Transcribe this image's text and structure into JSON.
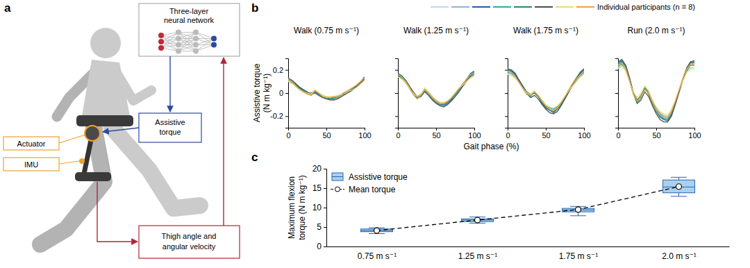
{
  "panel_labels": [
    "a",
    "b",
    "c"
  ],
  "diagram": {
    "network_label": [
      "Three-layer",
      "neural network"
    ],
    "torque_label": [
      "Assistive",
      "torque"
    ],
    "actuator_label": "Actuator",
    "imu_label": "IMU",
    "sensor_label": [
      "Thigh angle and",
      "angular velocity"
    ]
  },
  "panel_b": {
    "legend_label": "Individual participants (n = 8)",
    "x_label": "Gait phase (%)"
  },
  "chart_data": [
    {
      "type": "line",
      "title": "Walk (0.75 m s⁻¹)",
      "y_label": [
        "Assistive torque",
        "(N m kg⁻¹)"
      ],
      "x": [
        0,
        5,
        10,
        15,
        20,
        25,
        30,
        35,
        40,
        45,
        50,
        55,
        60,
        65,
        70,
        75,
        80,
        85,
        90,
        95,
        100
      ],
      "xlim": [
        0,
        100
      ],
      "xticks": [
        0,
        50,
        100
      ],
      "ylim": [
        -0.3,
        0.3
      ],
      "yticks": [
        -0.2,
        0,
        0.2
      ],
      "series": [
        {
          "color": "#bcd9ec",
          "values": [
            0.11,
            0.09,
            0.06,
            0.04,
            0.02,
            0.0,
            -0.01,
            0.01,
            -0.01,
            -0.03,
            -0.04,
            -0.04,
            -0.04,
            -0.03,
            -0.02,
            0.0,
            0.02,
            0.04,
            0.05,
            0.08,
            0.12
          ]
        },
        {
          "color": "#8db9dd",
          "values": [
            0.12,
            0.1,
            0.07,
            0.04,
            0.02,
            0.0,
            -0.01,
            0.01,
            -0.01,
            -0.03,
            -0.04,
            -0.04,
            -0.04,
            -0.03,
            -0.02,
            0.0,
            0.02,
            0.04,
            0.06,
            0.09,
            0.13
          ]
        },
        {
          "color": "#2a64ad",
          "values": [
            0.13,
            0.11,
            0.08,
            0.05,
            0.02,
            0.0,
            -0.02,
            0.01,
            -0.01,
            -0.03,
            -0.05,
            -0.05,
            -0.04,
            -0.03,
            -0.01,
            0.01,
            0.02,
            0.04,
            0.07,
            0.1,
            0.14
          ]
        },
        {
          "color": "#35b39a",
          "values": [
            0.12,
            0.09,
            0.06,
            0.03,
            0.01,
            -0.01,
            -0.01,
            0.02,
            0.0,
            -0.02,
            -0.03,
            -0.04,
            -0.04,
            -0.03,
            -0.02,
            0.0,
            0.01,
            0.03,
            0.06,
            0.09,
            0.12
          ]
        },
        {
          "color": "#2f8f73",
          "values": [
            0.13,
            0.1,
            0.07,
            0.04,
            0.02,
            0.0,
            0.0,
            0.02,
            -0.01,
            -0.03,
            -0.04,
            -0.05,
            -0.05,
            -0.04,
            -0.02,
            0.0,
            0.02,
            0.04,
            0.06,
            0.1,
            0.13
          ]
        },
        {
          "color": "#4a5a52",
          "values": [
            0.12,
            0.11,
            0.08,
            0.05,
            0.03,
            0.01,
            -0.01,
            0.0,
            -0.02,
            -0.04,
            -0.05,
            -0.06,
            -0.06,
            -0.05,
            -0.03,
            -0.01,
            0.01,
            0.03,
            0.06,
            0.09,
            0.12
          ]
        },
        {
          "color": "#e8dd7a",
          "values": [
            0.1,
            0.08,
            0.06,
            0.03,
            0.01,
            0.0,
            -0.01,
            0.03,
            0.0,
            -0.02,
            -0.03,
            -0.03,
            -0.03,
            -0.02,
            -0.01,
            0.0,
            0.02,
            0.03,
            0.05,
            0.08,
            0.11
          ]
        },
        {
          "color": "#f1a54a",
          "values": [
            0.12,
            0.1,
            0.06,
            0.03,
            0.01,
            -0.01,
            -0.02,
            0.02,
            0.0,
            -0.03,
            -0.04,
            -0.04,
            -0.03,
            -0.03,
            -0.02,
            0.01,
            0.03,
            0.05,
            0.07,
            0.1,
            0.13
          ]
        }
      ]
    },
    {
      "type": "line",
      "title": "Walk (1.25 m s⁻¹)",
      "tick_labels": "x",
      "x": [
        0,
        5,
        10,
        15,
        20,
        25,
        30,
        35,
        40,
        45,
        50,
        55,
        60,
        65,
        70,
        75,
        80,
        85,
        90,
        95,
        100
      ],
      "xlim": [
        0,
        100
      ],
      "xticks": [
        0,
        50,
        100
      ],
      "ylim": [
        -0.3,
        0.3
      ],
      "yticks": [
        -0.2,
        0,
        0.2
      ],
      "series": [
        {
          "color": "#bcd9ec",
          "values": [
            0.14,
            0.13,
            0.09,
            0.05,
            0.0,
            -0.04,
            -0.02,
            0.03,
            0.0,
            -0.04,
            -0.06,
            -0.08,
            -0.09,
            -0.07,
            -0.05,
            -0.01,
            0.03,
            0.06,
            0.1,
            0.14,
            0.15
          ]
        },
        {
          "color": "#8db9dd",
          "values": [
            0.15,
            0.14,
            0.1,
            0.05,
            0.0,
            -0.04,
            -0.02,
            0.03,
            0.0,
            -0.04,
            -0.07,
            -0.09,
            -0.1,
            -0.08,
            -0.05,
            -0.01,
            0.03,
            0.07,
            0.11,
            0.15,
            0.17
          ]
        },
        {
          "color": "#2a64ad",
          "values": [
            0.17,
            0.15,
            0.11,
            0.06,
            0.0,
            -0.04,
            -0.02,
            0.03,
            0.0,
            -0.04,
            -0.08,
            -0.1,
            -0.11,
            -0.09,
            -0.06,
            -0.01,
            0.03,
            0.08,
            0.12,
            0.17,
            0.19
          ]
        },
        {
          "color": "#35b39a",
          "values": [
            0.15,
            0.13,
            0.09,
            0.04,
            -0.01,
            -0.05,
            -0.03,
            0.04,
            0.01,
            -0.03,
            -0.06,
            -0.08,
            -0.09,
            -0.08,
            -0.05,
            -0.02,
            0.02,
            0.06,
            0.1,
            0.14,
            0.16
          ]
        },
        {
          "color": "#2f8f73",
          "values": [
            0.16,
            0.15,
            0.11,
            0.06,
            0.01,
            -0.03,
            -0.01,
            0.02,
            -0.01,
            -0.05,
            -0.08,
            -0.1,
            -0.1,
            -0.08,
            -0.05,
            -0.01,
            0.03,
            0.07,
            0.12,
            0.16,
            0.18
          ]
        },
        {
          "color": "#4a5a52",
          "values": [
            0.15,
            0.14,
            0.11,
            0.06,
            0.01,
            -0.03,
            -0.03,
            0.01,
            -0.02,
            -0.06,
            -0.09,
            -0.11,
            -0.12,
            -0.1,
            -0.07,
            -0.03,
            0.01,
            0.06,
            0.11,
            0.15,
            0.17
          ]
        },
        {
          "color": "#e8dd7a",
          "values": [
            0.14,
            0.12,
            0.09,
            0.04,
            0.0,
            -0.03,
            -0.01,
            0.04,
            0.01,
            -0.03,
            -0.06,
            -0.08,
            -0.08,
            -0.07,
            -0.04,
            0.0,
            0.04,
            0.07,
            0.1,
            0.13,
            0.15
          ]
        },
        {
          "color": "#f1a54a",
          "values": [
            0.16,
            0.14,
            0.1,
            0.05,
            -0.01,
            -0.05,
            -0.02,
            0.03,
            0.0,
            -0.04,
            -0.07,
            -0.09,
            -0.09,
            -0.07,
            -0.04,
            0.0,
            0.04,
            0.08,
            0.12,
            0.16,
            0.17
          ]
        }
      ]
    },
    {
      "type": "line",
      "title": "Walk (1.75 m s⁻¹)",
      "tick_labels": "x",
      "x": [
        0,
        5,
        10,
        15,
        20,
        25,
        30,
        35,
        40,
        45,
        50,
        55,
        60,
        65,
        70,
        75,
        80,
        85,
        90,
        95,
        100
      ],
      "xlim": [
        0,
        100
      ],
      "xticks": [
        0,
        50,
        100
      ],
      "ylim": [
        -0.3,
        0.3
      ],
      "yticks": [
        -0.2,
        0,
        0.2
      ],
      "series": [
        {
          "color": "#bcd9ec",
          "values": [
            0.17,
            0.16,
            0.13,
            0.09,
            0.05,
            0.0,
            -0.02,
            0.0,
            -0.03,
            -0.07,
            -0.11,
            -0.13,
            -0.14,
            -0.12,
            -0.08,
            -0.04,
            0.02,
            0.06,
            0.11,
            0.14,
            0.17
          ]
        },
        {
          "color": "#8db9dd",
          "values": [
            0.19,
            0.18,
            0.15,
            0.1,
            0.05,
            0.0,
            -0.02,
            0.0,
            -0.03,
            -0.08,
            -0.12,
            -0.14,
            -0.15,
            -0.13,
            -0.09,
            -0.04,
            0.02,
            0.07,
            0.12,
            0.16,
            0.19
          ]
        },
        {
          "color": "#2a64ad",
          "values": [
            0.21,
            0.2,
            0.17,
            0.11,
            0.06,
            0.0,
            -0.02,
            0.0,
            -0.03,
            -0.09,
            -0.13,
            -0.15,
            -0.17,
            -0.14,
            -0.1,
            -0.04,
            0.02,
            0.08,
            0.13,
            0.18,
            0.21
          ]
        },
        {
          "color": "#35b39a",
          "values": [
            0.18,
            0.17,
            0.14,
            0.09,
            0.04,
            -0.01,
            -0.03,
            0.01,
            -0.02,
            -0.07,
            -0.11,
            -0.13,
            -0.14,
            -0.12,
            -0.09,
            -0.05,
            0.01,
            0.06,
            0.11,
            0.15,
            0.18
          ]
        },
        {
          "color": "#2f8f73",
          "values": [
            0.2,
            0.19,
            0.16,
            0.11,
            0.06,
            0.01,
            -0.01,
            0.01,
            -0.03,
            -0.08,
            -0.12,
            -0.15,
            -0.16,
            -0.14,
            -0.1,
            -0.04,
            0.02,
            0.08,
            0.13,
            0.17,
            0.2
          ]
        },
        {
          "color": "#4a5a52",
          "values": [
            0.2,
            0.19,
            0.16,
            0.11,
            0.05,
            0.0,
            -0.04,
            -0.02,
            -0.05,
            -0.1,
            -0.14,
            -0.17,
            -0.18,
            -0.16,
            -0.11,
            -0.05,
            0.01,
            0.07,
            0.12,
            0.17,
            0.2
          ]
        },
        {
          "color": "#e8dd7a",
          "values": [
            0.16,
            0.15,
            0.13,
            0.09,
            0.04,
            0.0,
            -0.01,
            0.02,
            -0.02,
            -0.06,
            -0.1,
            -0.12,
            -0.13,
            -0.11,
            -0.08,
            -0.03,
            0.02,
            0.06,
            0.1,
            0.14,
            0.16
          ]
        },
        {
          "color": "#f1a54a",
          "values": [
            0.19,
            0.18,
            0.14,
            0.09,
            0.04,
            -0.01,
            -0.02,
            0.01,
            -0.02,
            -0.07,
            -0.11,
            -0.14,
            -0.15,
            -0.13,
            -0.08,
            -0.03,
            0.03,
            0.08,
            0.12,
            0.16,
            0.19
          ]
        }
      ]
    },
    {
      "type": "line",
      "title": "Run (2.0 m s⁻¹)",
      "tick_labels": "x",
      "x": [
        0,
        5,
        10,
        15,
        20,
        25,
        30,
        35,
        40,
        45,
        50,
        55,
        60,
        65,
        70,
        75,
        80,
        85,
        90,
        95,
        100
      ],
      "xlim": [
        0,
        100
      ],
      "xticks": [
        0,
        50,
        100
      ],
      "ylim": [
        -0.3,
        0.3
      ],
      "yticks": [
        -0.2,
        0,
        0.2
      ],
      "series": [
        {
          "color": "#bcd9ec",
          "values": [
            0.22,
            0.24,
            0.2,
            0.11,
            0.0,
            -0.06,
            -0.03,
            0.03,
            0.0,
            -0.07,
            -0.13,
            -0.17,
            -0.19,
            -0.2,
            -0.15,
            -0.07,
            0.02,
            0.11,
            0.18,
            0.22,
            0.22
          ]
        },
        {
          "color": "#8db9dd",
          "values": [
            0.24,
            0.26,
            0.22,
            0.12,
            0.0,
            -0.07,
            -0.03,
            0.04,
            0.0,
            -0.08,
            -0.15,
            -0.19,
            -0.21,
            -0.22,
            -0.17,
            -0.08,
            0.02,
            0.12,
            0.2,
            0.25,
            0.25
          ]
        },
        {
          "color": "#2a64ad",
          "values": [
            0.26,
            0.28,
            0.24,
            0.13,
            0.0,
            -0.08,
            -0.03,
            0.04,
            0.0,
            -0.09,
            -0.16,
            -0.21,
            -0.23,
            -0.24,
            -0.19,
            -0.09,
            0.02,
            0.13,
            0.22,
            0.27,
            0.27
          ]
        },
        {
          "color": "#35b39a",
          "values": [
            0.23,
            0.25,
            0.21,
            0.11,
            -0.01,
            -0.08,
            -0.04,
            0.05,
            0.01,
            -0.07,
            -0.14,
            -0.18,
            -0.2,
            -0.21,
            -0.16,
            -0.08,
            0.01,
            0.11,
            0.19,
            0.24,
            0.24
          ]
        },
        {
          "color": "#2f8f73",
          "values": [
            0.25,
            0.27,
            0.23,
            0.13,
            0.01,
            -0.06,
            -0.02,
            0.04,
            -0.01,
            -0.09,
            -0.16,
            -0.2,
            -0.22,
            -0.23,
            -0.18,
            -0.09,
            0.02,
            0.12,
            0.21,
            0.26,
            0.26
          ]
        },
        {
          "color": "#4a5a52",
          "values": [
            0.27,
            0.29,
            0.24,
            0.13,
            0.0,
            -0.09,
            -0.06,
            0.01,
            -0.03,
            -0.11,
            -0.18,
            -0.23,
            -0.25,
            -0.25,
            -0.2,
            -0.1,
            0.01,
            0.12,
            0.21,
            0.27,
            0.28
          ]
        },
        {
          "color": "#e8dd7a",
          "values": [
            0.21,
            0.23,
            0.19,
            0.1,
            0.01,
            -0.04,
            0.0,
            0.06,
            0.02,
            -0.06,
            -0.12,
            -0.16,
            -0.18,
            -0.19,
            -0.14,
            -0.06,
            0.03,
            0.11,
            0.18,
            0.21,
            0.21
          ]
        },
        {
          "color": "#f1a54a",
          "values": [
            0.24,
            0.26,
            0.21,
            0.11,
            -0.01,
            -0.07,
            -0.03,
            0.03,
            0.0,
            -0.08,
            -0.15,
            -0.19,
            -0.2,
            -0.21,
            -0.16,
            -0.07,
            0.03,
            0.13,
            0.21,
            0.25,
            0.25
          ]
        }
      ]
    },
    {
      "type": "box",
      "y_label": [
        "Maximum flexion",
        "torque (N m kg⁻¹)"
      ],
      "categories": [
        "0.75 m s⁻¹",
        "1.25 m s⁻¹",
        "1.75 m s⁻¹",
        "2.0 m s⁻¹"
      ],
      "ylim": [
        0,
        20
      ],
      "yticks": [
        0,
        5,
        10,
        15,
        20
      ],
      "legend": "upper left",
      "series": [
        {
          "name": "Assistive torque",
          "type": "box",
          "color": "#a9d1ee",
          "min": [
            3.3,
            6.0,
            7.9,
            12.9
          ],
          "q1": [
            3.8,
            6.4,
            8.9,
            13.8
          ],
          "median": [
            4.1,
            6.8,
            9.4,
            15.3
          ],
          "q3": [
            4.5,
            7.1,
            9.8,
            17.1
          ],
          "max": [
            4.8,
            7.6,
            10.3,
            17.8
          ]
        },
        {
          "name": "Mean torque",
          "type": "line",
          "color": "#000000",
          "marker": "circle",
          "line_style": "dashed",
          "values": [
            4.1,
            6.8,
            9.5,
            15.4
          ]
        }
      ]
    }
  ]
}
